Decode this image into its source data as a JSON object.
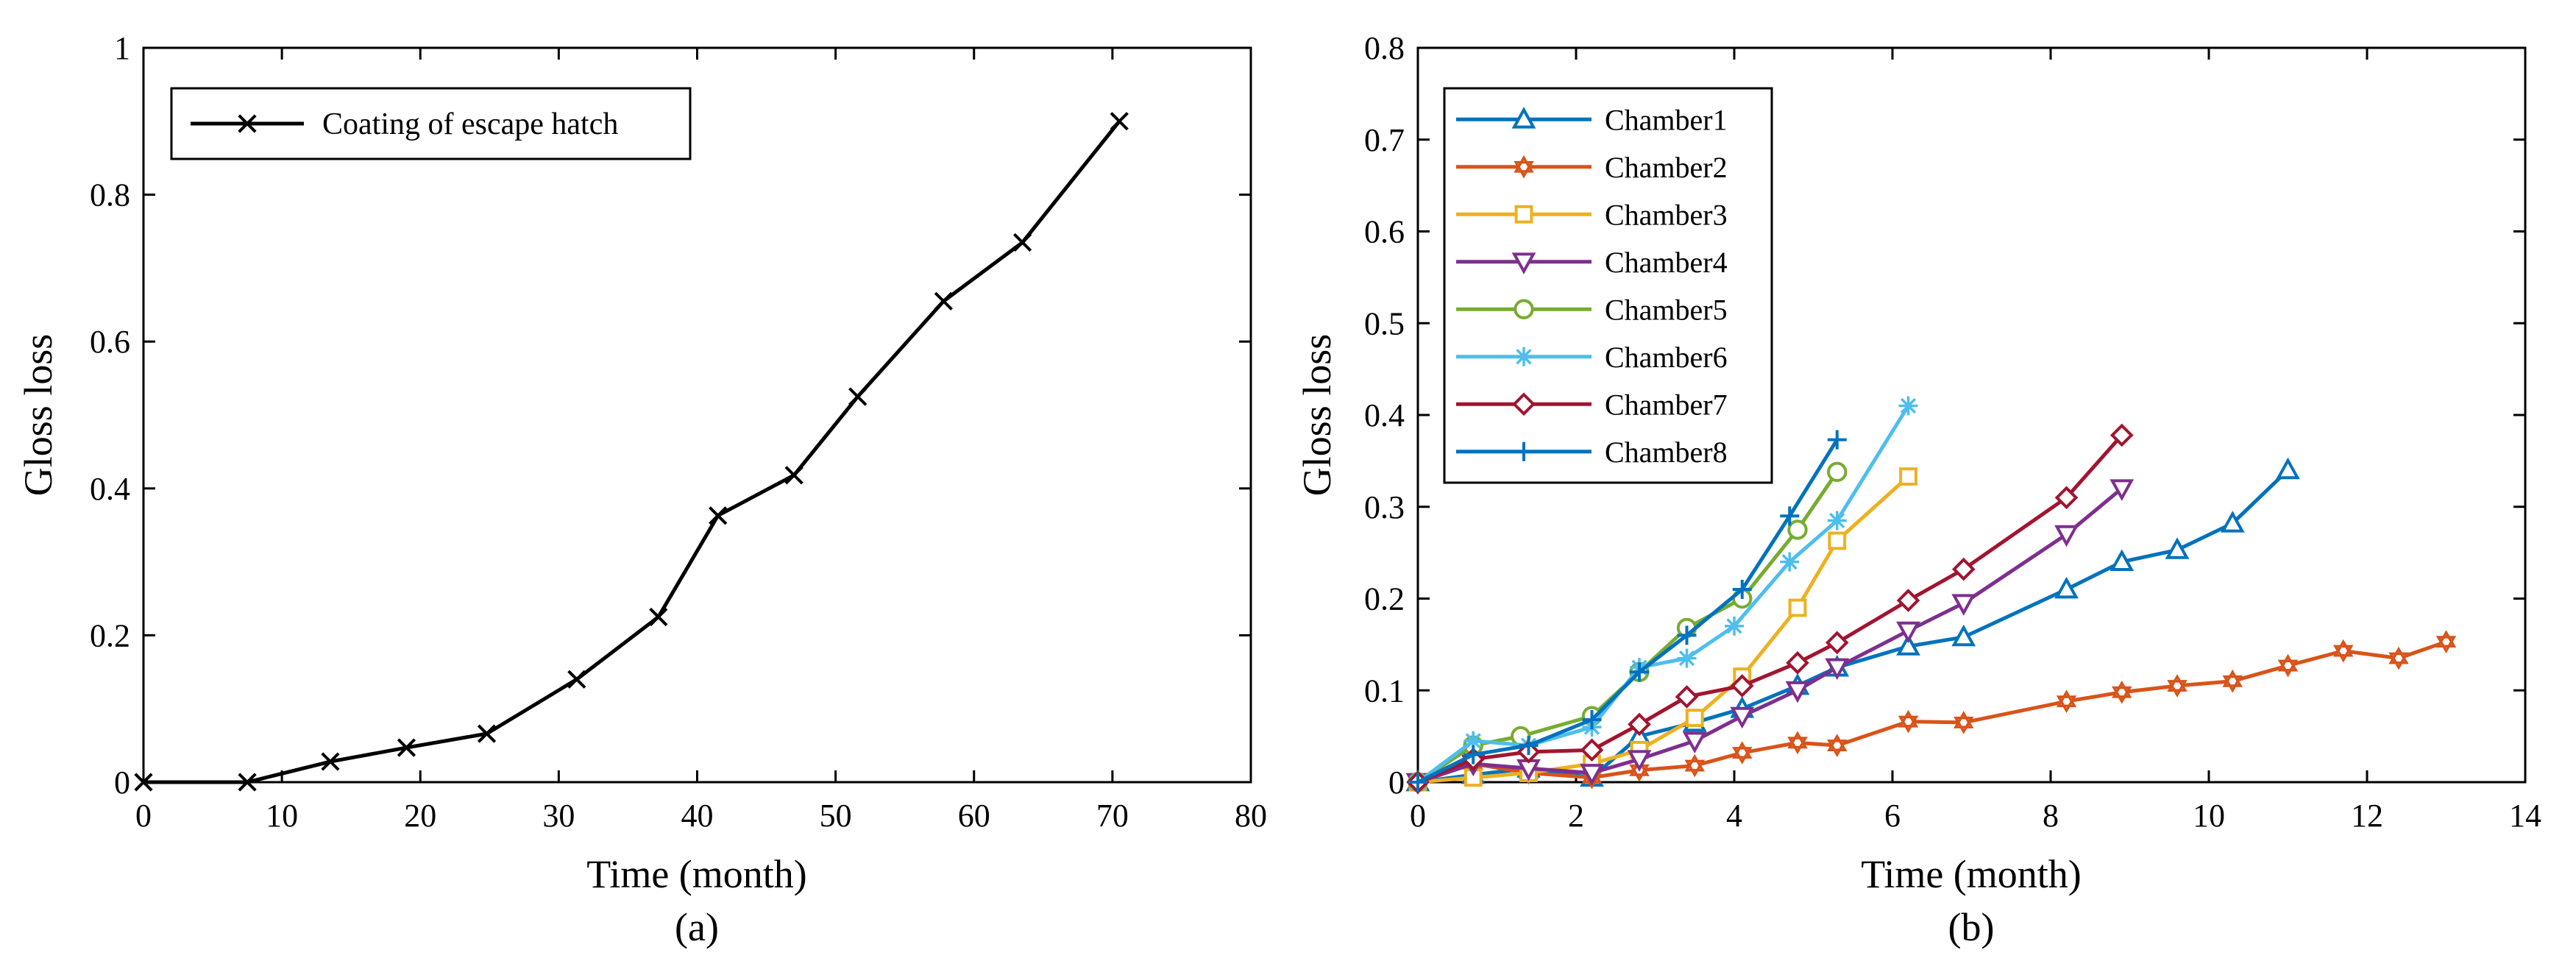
{
  "chart_data": [
    {
      "type": "line",
      "panel_label": "(a)",
      "xlabel": "Time (month)",
      "ylabel": "Gloss loss",
      "xlim": [
        0,
        80
      ],
      "ylim": [
        0,
        1
      ],
      "xticks": [
        0,
        10,
        20,
        30,
        40,
        50,
        60,
        70,
        80
      ],
      "yticks": [
        0,
        0.2,
        0.4,
        0.6,
        0.8,
        1
      ],
      "xtick_labels": [
        "0",
        "10",
        "20",
        "30",
        "40",
        "50",
        "60",
        "70",
        "80"
      ],
      "ytick_labels": [
        "0",
        "0.2",
        "0.4",
        "0.6",
        "0.8",
        "1"
      ],
      "grid": false,
      "legend_position": "top-left",
      "series": [
        {
          "name": "Coating of escape hatch",
          "color": "#000000",
          "marker": "x",
          "x": [
            0,
            7.5,
            13.5,
            19,
            24.8,
            31.3,
            37.2,
            41.5,
            47,
            51.6,
            57.8,
            63.5,
            70.5
          ],
          "y": [
            0,
            0,
            0.028,
            0.047,
            0.066,
            0.14,
            0.225,
            0.363,
            0.418,
            0.525,
            0.655,
            0.735,
            0.9
          ]
        }
      ]
    },
    {
      "type": "line",
      "panel_label": "(b)",
      "xlabel": "Time (month)",
      "ylabel": "Gloss loss",
      "xlim": [
        0,
        14
      ],
      "ylim": [
        0,
        0.8
      ],
      "xticks": [
        0,
        2,
        4,
        6,
        8,
        10,
        12,
        14
      ],
      "yticks": [
        0,
        0.1,
        0.2,
        0.3,
        0.4,
        0.5,
        0.6,
        0.7,
        0.8
      ],
      "xtick_labels": [
        "0",
        "2",
        "4",
        "6",
        "8",
        "10",
        "12",
        "14"
      ],
      "ytick_labels": [
        "0",
        "0.1",
        "0.2",
        "0.3",
        "0.4",
        "0.5",
        "0.6",
        "0.7",
        "0.8"
      ],
      "grid": false,
      "legend_position": "top-left",
      "series": [
        {
          "name": "Chamber1",
          "color": "#0072BD",
          "marker": "triangle-up",
          "x": [
            0,
            0.7,
            1.4,
            2.2,
            2.8,
            3.5,
            4.1,
            4.8,
            5.3,
            6.2,
            6.9,
            8.2,
            8.9,
            9.6,
            10.3,
            11
          ],
          "y": [
            0,
            0.008,
            0.015,
            0.005,
            0.05,
            0.065,
            0.08,
            0.105,
            0.125,
            0.148,
            0.158,
            0.21,
            0.24,
            0.253,
            0.282,
            0.34
          ]
        },
        {
          "name": "Chamber2",
          "color": "#D95319",
          "marker": "hexagram",
          "x": [
            0,
            0.7,
            1.4,
            2.2,
            2.8,
            3.5,
            4.1,
            4.8,
            5.3,
            6.2,
            6.9,
            8.2,
            8.9,
            9.6,
            10.3,
            11,
            11.7,
            12.4,
            13
          ],
          "y": [
            0,
            0.02,
            0.01,
            0.005,
            0.013,
            0.018,
            0.032,
            0.043,
            0.04,
            0.066,
            0.065,
            0.088,
            0.098,
            0.105,
            0.11,
            0.127,
            0.143,
            0.135,
            0.153
          ]
        },
        {
          "name": "Chamber3",
          "color": "#EDB120",
          "marker": "square",
          "x": [
            0,
            0.7,
            1.4,
            2.2,
            2.8,
            3.5,
            4.1,
            4.8,
            5.3,
            6.2
          ],
          "y": [
            0,
            0.005,
            0.01,
            0.02,
            0.035,
            0.07,
            0.115,
            0.19,
            0.263,
            0.333
          ]
        },
        {
          "name": "Chamber4",
          "color": "#7E2F8E",
          "marker": "triangle-down",
          "x": [
            0,
            0.7,
            1.4,
            2.2,
            2.8,
            3.5,
            4.1,
            4.8,
            5.3,
            6.2,
            6.9,
            8.2,
            8.9
          ],
          "y": [
            0,
            0.02,
            0.015,
            0.01,
            0.025,
            0.045,
            0.072,
            0.1,
            0.125,
            0.165,
            0.195,
            0.27,
            0.32
          ]
        },
        {
          "name": "Chamber5",
          "color": "#77AC30",
          "marker": "circle",
          "x": [
            0,
            0.7,
            1.3,
            2.2,
            2.8,
            3.4,
            4.1,
            4.8,
            5.3
          ],
          "y": [
            0,
            0.04,
            0.05,
            0.072,
            0.12,
            0.168,
            0.2,
            0.275,
            0.338
          ]
        },
        {
          "name": "Chamber6",
          "color": "#4DBEEE",
          "marker": "asterisk",
          "x": [
            0,
            0.7,
            1.4,
            2.2,
            2.8,
            3.4,
            4.0,
            4.7,
            5.3,
            6.2
          ],
          "y": [
            0,
            0.045,
            0.04,
            0.06,
            0.125,
            0.135,
            0.17,
            0.24,
            0.285,
            0.41
          ]
        },
        {
          "name": "Chamber7",
          "color": "#A2142F",
          "marker": "diamond",
          "x": [
            0,
            0.7,
            1.4,
            2.2,
            2.8,
            3.4,
            4.1,
            4.8,
            5.3,
            6.2,
            6.9,
            8.2,
            8.9
          ],
          "y": [
            0,
            0.025,
            0.033,
            0.035,
            0.063,
            0.093,
            0.105,
            0.13,
            0.152,
            0.198,
            0.232,
            0.31,
            0.378
          ]
        },
        {
          "name": "Chamber8",
          "color": "#0072BD",
          "marker": "plus",
          "x": [
            0,
            0.7,
            1.4,
            2.2,
            2.8,
            3.4,
            4.1,
            4.7,
            5.3
          ],
          "y": [
            0,
            0.03,
            0.04,
            0.068,
            0.12,
            0.16,
            0.21,
            0.29,
            0.373
          ]
        }
      ]
    }
  ]
}
